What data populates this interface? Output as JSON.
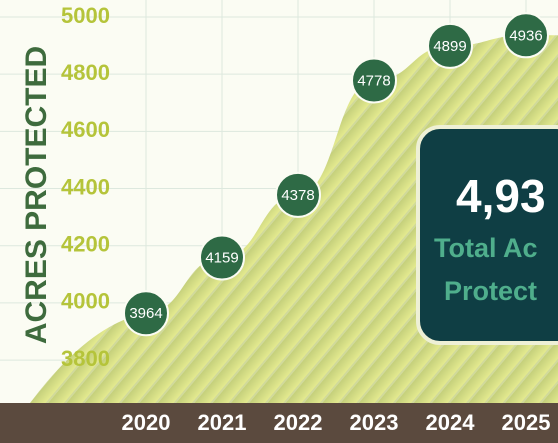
{
  "chart_data": {
    "type": "area",
    "y_label": "ACRES PROTECTED",
    "categories": [
      "2020",
      "2021",
      "2022",
      "2023",
      "2024",
      "2025"
    ],
    "values": [
      3964,
      4159,
      4378,
      4778,
      4899,
      4936
    ],
    "color": "#cdd67f",
    "marker_color": "#2e6a45",
    "ylim": [
      3650,
      5000
    ],
    "yticks": [
      3800,
      4000,
      4200,
      4400,
      4600,
      4800,
      5000
    ],
    "grid": true,
    "callout": {
      "value": "4,93",
      "line1": "Total Ac",
      "line2": "Protect"
    }
  }
}
